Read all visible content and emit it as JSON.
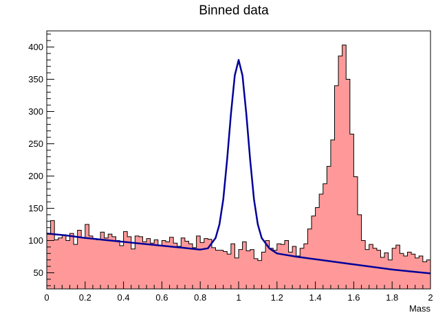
{
  "chart_data": {
    "type": "bar",
    "title": "Binned data",
    "xlabel": "Mass",
    "ylabel": "",
    "xlim": [
      0,
      2
    ],
    "ylim": [
      25,
      425
    ],
    "bins": 100,
    "x_ticks": [
      "0",
      "0.2",
      "0.4",
      "0.6",
      "0.8",
      "1",
      "1.2",
      "1.4",
      "1.6",
      "1.8",
      "2"
    ],
    "y_ticks": [
      "50",
      "100",
      "150",
      "200",
      "250",
      "300",
      "350",
      "400"
    ],
    "grid": false,
    "legend": "none",
    "series": [
      {
        "kind": "histogram",
        "bin_edges_start": 0,
        "bin_width": 0.02,
        "values": [
          110,
          131,
          101,
          104,
          109,
          100,
          111,
          94,
          116,
          104,
          125,
          107,
          103,
          101,
          113,
          104,
          110,
          106,
          100,
          92,
          114,
          106,
          87,
          107,
          106,
          98,
          103,
          96,
          101,
          93,
          100,
          98,
          105,
          96,
          91,
          104,
          99,
          95,
          89,
          107,
          97,
          103,
          102,
          89,
          85,
          85,
          83,
          79,
          95,
          73,
          86,
          98,
          84,
          86,
          72,
          69,
          82,
          100,
          88,
          85,
          95,
          94,
          100,
          82,
          91,
          76,
          88,
          95,
          118,
          138,
          151,
          172,
          188,
          215,
          256,
          340,
          386,
          403,
          350,
          265,
          199,
          140,
          100,
          86,
          94,
          88,
          85,
          74,
          81,
          70,
          88,
          93,
          80,
          76,
          82,
          79,
          73,
          76,
          67,
          70
        ]
      },
      {
        "kind": "fit",
        "x": [
          0,
          0.1,
          0.2,
          0.3,
          0.4,
          0.5,
          0.6,
          0.7,
          0.8,
          0.84,
          0.88,
          0.9,
          0.92,
          0.94,
          0.96,
          0.98,
          1.0,
          1.02,
          1.04,
          1.06,
          1.08,
          1.1,
          1.12,
          1.16,
          1.2,
          1.3,
          1.4,
          1.5,
          1.6,
          1.7,
          1.8,
          1.9,
          2.0
        ],
        "y": [
          111,
          108,
          104,
          101,
          98,
          95,
          92,
          89,
          86,
          88,
          104,
          125,
          164,
          226,
          296,
          356,
          380,
          356,
          296,
          226,
          164,
          125,
          104,
          88,
          80,
          75,
          71,
          67,
          63,
          59,
          55,
          52,
          49
        ]
      }
    ],
    "colors": {
      "hist_fill": "#ff9999",
      "hist_line": "#000000",
      "fit_line": "#000099",
      "axis": "#000000"
    }
  }
}
